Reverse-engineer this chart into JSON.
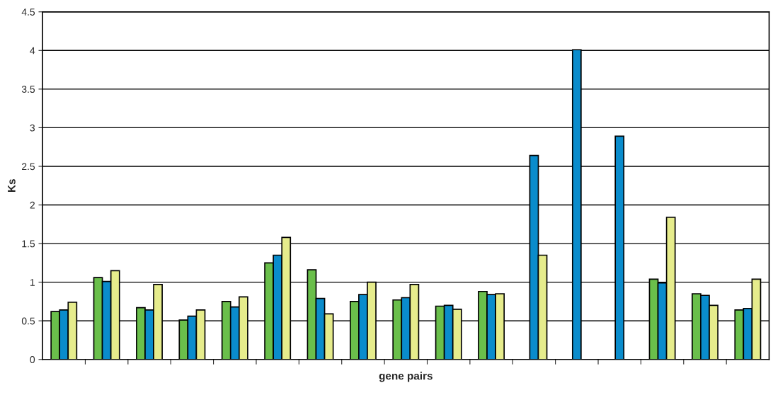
{
  "chart_data": {
    "type": "bar",
    "xlabel": "gene pairs",
    "ylabel": "Ks",
    "categories": [
      null,
      null,
      null,
      null,
      null,
      null,
      null,
      null,
      null,
      null,
      null,
      null,
      null,
      null,
      null,
      null,
      null
    ],
    "series": [
      {
        "color": "#6abf4b",
        "values": [
          0.62,
          1.06,
          0.67,
          0.51,
          0.75,
          1.25,
          1.16,
          0.75,
          0.77,
          0.69,
          0.88,
          null,
          null,
          null,
          1.04,
          0.85,
          0.64
        ]
      },
      {
        "color": "#0a8ccc",
        "values": [
          0.64,
          1.01,
          0.64,
          0.56,
          0.68,
          1.35,
          0.79,
          0.84,
          0.8,
          0.7,
          0.84,
          2.64,
          4.01,
          2.89,
          0.99,
          0.83,
          0.66
        ]
      },
      {
        "color": "#e6ec8c",
        "values": [
          0.74,
          1.15,
          0.97,
          0.64,
          0.81,
          1.58,
          0.59,
          1.0,
          0.97,
          0.65,
          0.85,
          1.35,
          null,
          null,
          1.84,
          0.7,
          1.04
        ]
      }
    ],
    "ylim": [
      0,
      4.5
    ],
    "yticks": [
      0,
      {
        "value": 0.5,
        "label": "0.5"
      },
      1,
      {
        "value": 1.5,
        "label": "1.5"
      },
      2,
      {
        "value": 2.5,
        "label": "2.5"
      },
      3,
      {
        "value": 3.5,
        "label": "3.5"
      },
      4,
      {
        "value": 4.5,
        "label": "4.5"
      }
    ],
    "grid": "y"
  }
}
